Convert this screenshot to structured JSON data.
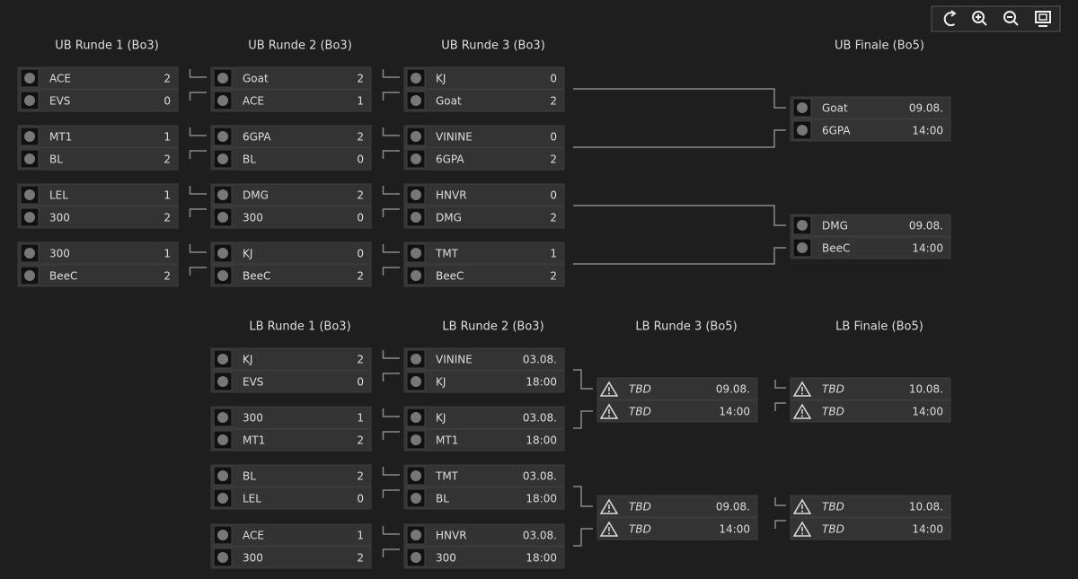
{
  "rounds": [
    {
      "title": "UB Runde 1 (Bo3)",
      "matches": [
        {
          "teams": [
            {
              "name": "ACE",
              "score": 2
            },
            {
              "name": "EVS",
              "score": 0
            }
          ]
        },
        {
          "teams": [
            {
              "name": "MT1",
              "score": 1
            },
            {
              "name": "BL",
              "score": 2
            }
          ]
        },
        {
          "teams": [
            {
              "name": "LEL",
              "score": 1
            },
            {
              "name": "300",
              "score": 2
            }
          ]
        },
        {
          "teams": [
            {
              "name": "300",
              "score": 1
            },
            {
              "name": "BeeC",
              "score": 2
            }
          ]
        }
      ]
    },
    {
      "title": "UB Runde 2 (Bo3)",
      "matches": [
        {
          "teams": [
            {
              "name": "Goat",
              "score": 2
            },
            {
              "name": "ACE",
              "score": 1
            }
          ]
        },
        {
          "teams": [
            {
              "name": "6GPA",
              "score": 2
            },
            {
              "name": "BL",
              "score": 0
            }
          ]
        },
        {
          "teams": [
            {
              "name": "DMG",
              "score": 2
            },
            {
              "name": "300",
              "score": 0
            }
          ]
        },
        {
          "teams": [
            {
              "name": "KJ",
              "score": 0
            },
            {
              "name": "BeeC",
              "score": 2
            }
          ]
        }
      ]
    },
    {
      "title": "UB Runde 3 (Bo3)",
      "matches": [
        {
          "teams": [
            {
              "name": "KJ",
              "score": 0
            },
            {
              "name": "Goat",
              "score": 2
            }
          ]
        },
        {
          "teams": [
            {
              "name": "VININE",
              "score": 0
            },
            {
              "name": "6GPA",
              "score": 2
            }
          ]
        },
        {
          "teams": [
            {
              "name": "HNVR",
              "score": 0
            },
            {
              "name": "DMG",
              "score": 2
            }
          ]
        },
        {
          "teams": [
            {
              "name": "TMT",
              "score": 1
            },
            {
              "name": "BeeC",
              "score": 2
            }
          ]
        }
      ]
    },
    {
      "title": "UB Finale (Bo5)",
      "matches": [
        {
          "teams": [
            {
              "name": "Goat",
              "score": "09.08."
            },
            {
              "name": "6GPA",
              "score": "14:00"
            }
          ]
        },
        {
          "teams": [
            {
              "name": "DMG",
              "score": "09.08."
            },
            {
              "name": "BeeC",
              "score": "14:00"
            }
          ]
        }
      ]
    },
    {
      "title": "LB Runde 1 (Bo3)",
      "matches": [
        {
          "teams": [
            {
              "name": "KJ",
              "score": 2
            },
            {
              "name": "EVS",
              "score": 0
            }
          ]
        },
        {
          "teams": [
            {
              "name": "300",
              "score": 1
            },
            {
              "name": "MT1",
              "score": 2
            }
          ]
        },
        {
          "teams": [
            {
              "name": "BL",
              "score": 2
            },
            {
              "name": "LEL",
              "score": 0
            }
          ]
        },
        {
          "teams": [
            {
              "name": "ACE",
              "score": 1
            },
            {
              "name": "300",
              "score": 2
            }
          ]
        }
      ]
    },
    {
      "title": "LB Runde 2 (Bo3)",
      "matches": [
        {
          "teams": [
            {
              "name": "VININE",
              "score": "03.08."
            },
            {
              "name": "KJ",
              "score": "18:00"
            }
          ]
        },
        {
          "teams": [
            {
              "name": "KJ",
              "score": "03.08."
            },
            {
              "name": "MT1",
              "score": "18:00"
            }
          ]
        },
        {
          "teams": [
            {
              "name": "TMT",
              "score": "03.08."
            },
            {
              "name": "BL",
              "score": "18:00"
            }
          ]
        },
        {
          "teams": [
            {
              "name": "HNVR",
              "score": "03.08."
            },
            {
              "name": "300",
              "score": "18:00"
            }
          ]
        }
      ]
    },
    {
      "title": "LB Runde 3 (Bo5)",
      "matches": [
        {
          "teams": [
            {
              "name": "TBD",
              "score": "09.08."
            },
            {
              "name": "TBD",
              "score": "14:00"
            }
          ]
        },
        {
          "teams": [
            {
              "name": "TBD",
              "score": "09.08."
            },
            {
              "name": "TBD",
              "score": "14:00"
            }
          ]
        }
      ]
    },
    {
      "title": "LB Finale (Bo5)",
      "matches": [
        {
          "teams": [
            {
              "name": "TBD",
              "score": "10.08."
            },
            {
              "name": "TBD",
              "score": "14:00"
            }
          ]
        },
        {
          "teams": [
            {
              "name": "TBD",
              "score": "10.08."
            },
            {
              "name": "TBD",
              "score": "14:00"
            }
          ]
        }
      ]
    }
  ]
}
